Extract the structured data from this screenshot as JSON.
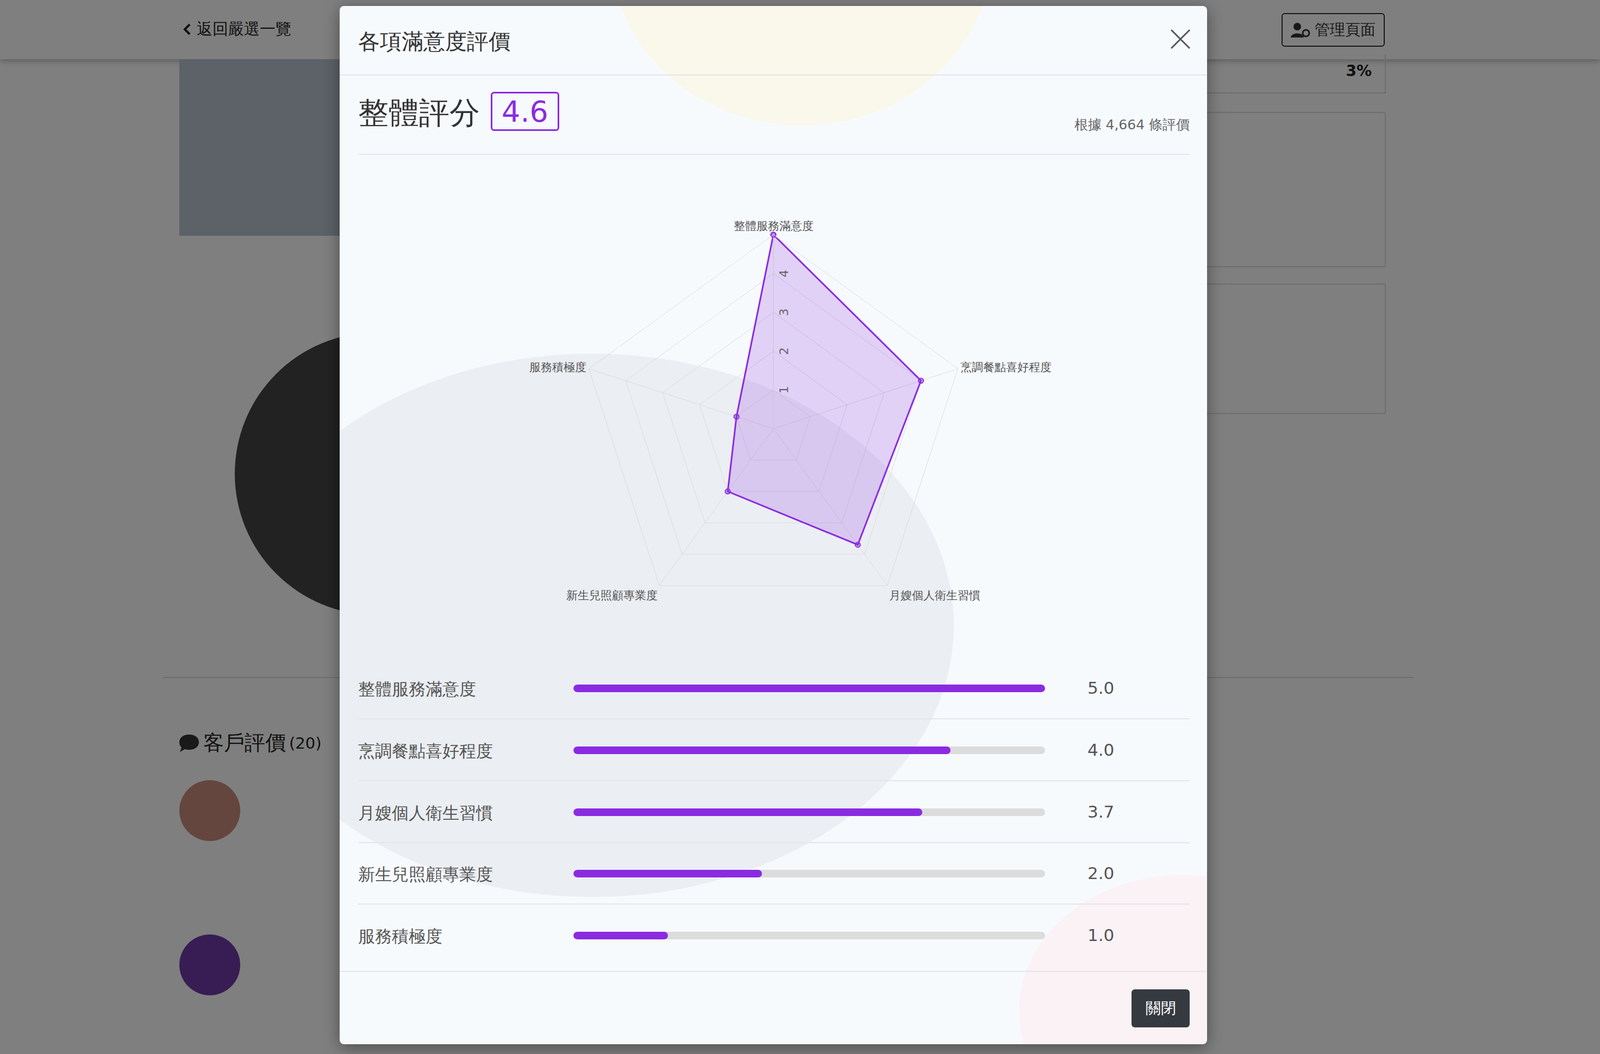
{
  "page": {
    "back_link": "返回嚴選一覽",
    "admin_button": "管理頁面",
    "percent_box": "3%",
    "reviews_heading": "客戶評價",
    "reviews_count": "(20)"
  },
  "modal": {
    "title": "各項滿意度評價",
    "overall_label": "整體評分",
    "overall_score": 4.6,
    "review_basis": "根據 4,664 條評價",
    "close_button": "關閉"
  },
  "chart_data": {
    "type": "radar",
    "categories": [
      "整體服務滿意度",
      "烹調餐點喜好程度",
      "月嫂個人衛生習慣",
      "新生兒照顧專業度",
      "服務積極度"
    ],
    "values": [
      5.0,
      4.0,
      3.7,
      2.0,
      1.0
    ],
    "value_labels": [
      "5.0",
      "4.0",
      "3.7",
      "2.0",
      "1.0"
    ],
    "ylim": [
      0,
      5
    ],
    "yticks": [
      1,
      2,
      3,
      4
    ],
    "color": "#8a2be2",
    "grid": true
  }
}
